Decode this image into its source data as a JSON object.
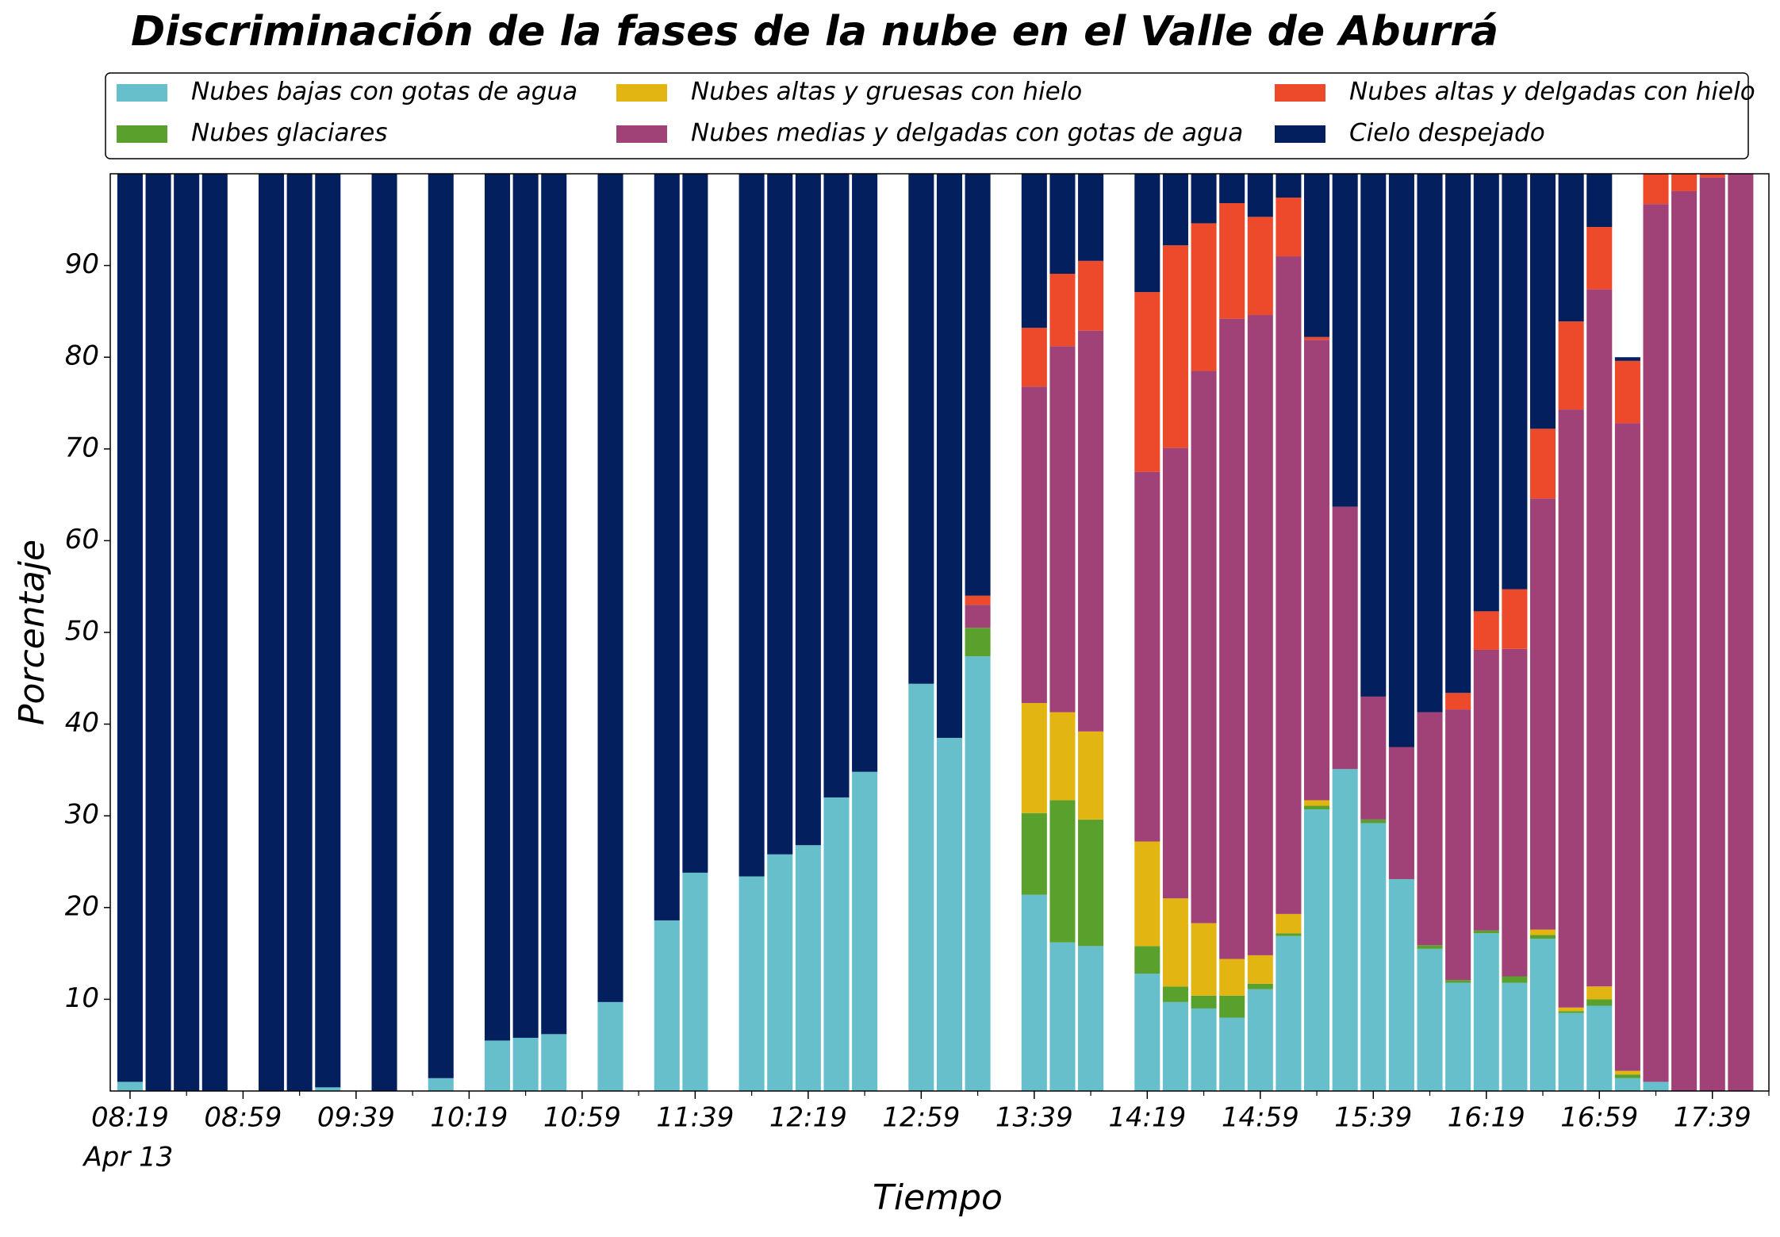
{
  "chart_data": {
    "type": "stacked_bar",
    "title": "Discriminación de la fases de la nube en el Valle de Aburrá",
    "xlabel": "Tiempo",
    "ylabel": "Porcentaje",
    "date_label": "Apr 13",
    "x": [
      "08:19",
      "08:29",
      "08:39",
      "08:49",
      "09:09",
      "09:19",
      "09:29",
      "09:49",
      "10:09",
      "10:29",
      "10:39",
      "10:49",
      "11:09",
      "11:29",
      "11:39",
      "11:59",
      "12:09",
      "12:19",
      "12:29",
      "12:39",
      "12:59",
      "13:09",
      "13:19",
      "13:39",
      "13:49",
      "13:59",
      "14:19",
      "14:29",
      "14:39",
      "14:49",
      "14:59",
      "15:09",
      "15:19",
      "15:29",
      "15:39",
      "15:49",
      "15:59",
      "16:09",
      "16:19",
      "16:29",
      "16:39",
      "16:49",
      "16:59",
      "17:09",
      "17:19",
      "17:29",
      "17:39",
      "17:49"
    ],
    "xlim": [
      "08:12",
      "17:59"
    ],
    "xticks": [
      "08:19",
      "08:59",
      "09:39",
      "10:19",
      "10:59",
      "11:39",
      "12:19",
      "12:59",
      "13:39",
      "14:19",
      "14:59",
      "15:39",
      "16:19",
      "16:59",
      "17:39"
    ],
    "xminorticks": [
      "08:39",
      "09:19",
      "09:59",
      "10:39",
      "11:19",
      "11:59",
      "12:39",
      "13:19",
      "13:59",
      "14:39",
      "15:19",
      "15:59",
      "16:39",
      "17:19",
      "17:59"
    ],
    "ylim": [
      0,
      100
    ],
    "yticks": [
      10,
      20,
      30,
      40,
      50,
      60,
      70,
      80,
      90
    ],
    "series": [
      {
        "name": "Nubes bajas con gotas de agua",
        "color": "#66bfca",
        "values": [
          1,
          0,
          0,
          0,
          0,
          0,
          0.4,
          0,
          1.4,
          5.5,
          5.8,
          6.2,
          9.7,
          18.6,
          23.8,
          23.4,
          25.8,
          26.8,
          32,
          34.8,
          44.4,
          38.5,
          47.4,
          21.4,
          16.2,
          15.8,
          12.8,
          9.7,
          9,
          8,
          11.1,
          16.9,
          30.7,
          35.1,
          29.2,
          23.1,
          15.5,
          11.8,
          17.2,
          11.8,
          16.6,
          8.5,
          9.3,
          1.4,
          1,
          0,
          0,
          0
        ]
      },
      {
        "name": "Nubes glaciares",
        "color": "#5aa02c",
        "values": [
          0,
          0,
          0,
          0,
          0,
          0,
          0,
          0,
          0,
          0,
          0,
          0,
          0,
          0,
          0,
          0,
          0,
          0,
          0,
          0,
          0,
          0,
          3.1,
          8.9,
          15.5,
          13.8,
          3.0,
          1.7,
          1.4,
          2.4,
          0.6,
          0.3,
          0.4,
          0,
          0.4,
          0,
          0.4,
          0.3,
          0.3,
          0.7,
          0.4,
          0.2,
          0.7,
          0.4,
          0,
          0,
          0,
          0
        ]
      },
      {
        "name": "Nubes altas y gruesas con hielo",
        "color": "#e3b512",
        "values": [
          0,
          0,
          0,
          0,
          0,
          0,
          0,
          0,
          0,
          0,
          0,
          0,
          0,
          0,
          0,
          0,
          0,
          0,
          0,
          0,
          0,
          0,
          0,
          12,
          9.6,
          9.6,
          11.4,
          9.6,
          7.9,
          4,
          3.1,
          2.1,
          0.6,
          0,
          0,
          0,
          0,
          0,
          0,
          0,
          0.6,
          0.4,
          1.4,
          0.4,
          0,
          0,
          0,
          0
        ]
      },
      {
        "name": "Nubes medias y delgadas con gotas de agua",
        "color": "#a04177",
        "values": [
          0,
          0,
          0,
          0,
          0,
          0,
          0,
          0,
          0,
          0,
          0,
          0,
          0,
          0,
          0,
          0,
          0,
          0,
          0,
          0,
          0,
          0,
          2.5,
          34.5,
          39.9,
          43.7,
          40.3,
          49.1,
          60.2,
          69.8,
          69.8,
          71.7,
          50.2,
          28.6,
          13.4,
          14.4,
          25.4,
          29.5,
          30.6,
          35.7,
          47,
          65.2,
          76,
          70.6,
          95.7,
          98.1,
          99.6,
          100
        ]
      },
      {
        "name": "Nubes altas y delgadas con hielo",
        "color": "#ec4a2a",
        "values": [
          0,
          0,
          0,
          0,
          0,
          0,
          0,
          0,
          0,
          0,
          0,
          0,
          0,
          0,
          0,
          0,
          0,
          0,
          0,
          0,
          0,
          0,
          1,
          6.4,
          7.9,
          7.6,
          19.6,
          22.1,
          16.1,
          12.6,
          10.7,
          6.4,
          0.3,
          0,
          0,
          0,
          0,
          1.8,
          4.2,
          6.5,
          7.6,
          9.6,
          6.8,
          6.8,
          3.3,
          1.9,
          0.4,
          0
        ]
      },
      {
        "name": "Cielo despejado",
        "color": "#041f5e",
        "values": [
          99,
          100,
          100,
          100,
          100,
          100,
          99.6,
          100,
          98.6,
          94.5,
          94.2,
          93.8,
          90.3,
          81.4,
          76.2,
          76.6,
          74.2,
          73.2,
          68,
          65.2,
          55.6,
          61.5,
          46,
          16.8,
          10.9,
          9.5,
          12.9,
          7.8,
          5.4,
          3.2,
          4.7,
          2.6,
          17.8,
          36.3,
          57,
          62.5,
          58.7,
          56.6,
          47.7,
          45.3,
          27.8,
          16.1,
          5.8,
          0.4,
          0,
          0,
          0,
          0
        ]
      }
    ]
  }
}
